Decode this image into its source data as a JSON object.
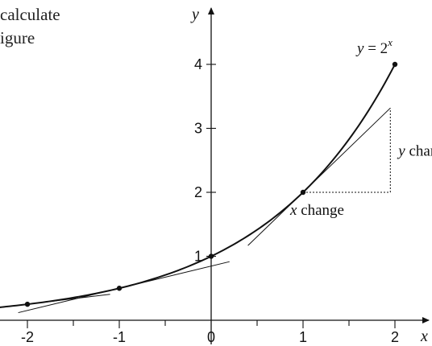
{
  "text_fragments": [
    "calculate",
    "igure"
  ],
  "chart_data": {
    "type": "line",
    "function_label": {
      "lhs": "y",
      "eq": " = 2",
      "exp": "x"
    },
    "xlabel": "x",
    "ylabel": "y",
    "xlim": [
      -2.6,
      2.8
    ],
    "ylim": [
      0,
      4.5
    ],
    "x_ticks": [
      -2,
      -1,
      0,
      1,
      2
    ],
    "x_tick_labels": [
      "-2",
      "-1",
      "0",
      "1",
      "2"
    ],
    "x_minor_step": 0.5,
    "y_ticks": [
      1,
      2,
      3,
      4
    ],
    "y_tick_labels": [
      "1",
      "2",
      "3",
      "4"
    ],
    "grid": false,
    "curve": {
      "function": "2^x",
      "x_range": [
        -2.3,
        2
      ]
    },
    "points": [
      {
        "x": -2,
        "y": 0.25
      },
      {
        "x": -1,
        "y": 0.5
      },
      {
        "x": 0,
        "y": 1
      },
      {
        "x": 1,
        "y": 2
      },
      {
        "x": 2,
        "y": 4
      }
    ],
    "tangents": [
      {
        "at_x": -2,
        "slope": 0.1733,
        "x_range": [
          -2.3,
          -1.1
        ]
      },
      {
        "at_x": -1,
        "slope": 0.3466,
        "x_range": [
          -2.1,
          0.2
        ]
      },
      {
        "at_x": 1,
        "slope": 1.3863,
        "x_range": [
          0.4,
          1.95
        ]
      }
    ],
    "slope_triangle": {
      "from_x": 1,
      "to_x": 1.95,
      "x_label": {
        "var": "x",
        "word": " change"
      },
      "y_label": {
        "var": "y",
        "word": " change"
      }
    }
  }
}
